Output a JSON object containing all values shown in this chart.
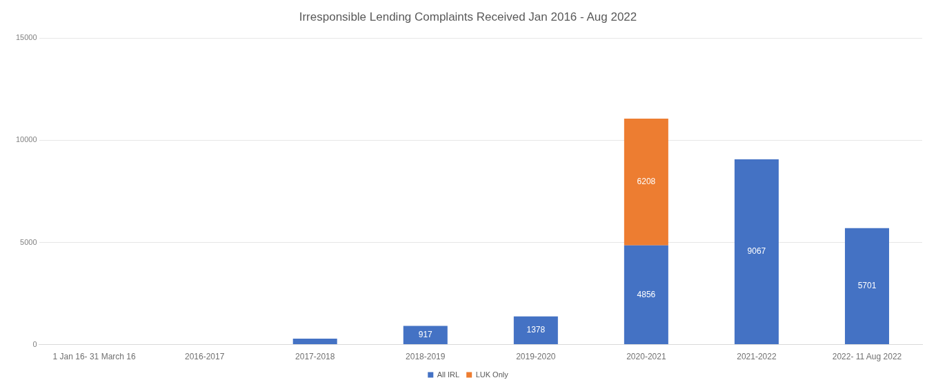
{
  "chart_data": {
    "type": "bar",
    "title": "Irresponsible Lending Complaints Received Jan 2016 - Aug 2022",
    "categories": [
      "1 Jan 16- 31 March 16",
      "2016-2017",
      "2017-2018",
      "2018-2019",
      "2019-2020",
      "2020-2021",
      "2021-2022",
      "2022- 11 Aug 2022"
    ],
    "series": [
      {
        "name": "All IRL",
        "color": "#4472c4",
        "values": [
          null,
          null,
          290,
          917,
          1378,
          4856,
          9067,
          5701
        ],
        "value_labels": [
          null,
          null,
          null,
          "917",
          "1378",
          "4856",
          "9067",
          "5701"
        ]
      },
      {
        "name": "LUK Only",
        "color": "#ed7d31",
        "values": [
          null,
          null,
          null,
          null,
          null,
          6208,
          null,
          null
        ],
        "value_labels": [
          null,
          null,
          null,
          null,
          null,
          "6208",
          null,
          null
        ]
      }
    ],
    "stacked": true,
    "ylim": [
      0,
      15000
    ],
    "yticks": [
      0,
      5000,
      10000,
      15000
    ],
    "grid": "y",
    "legend": "bottom"
  }
}
